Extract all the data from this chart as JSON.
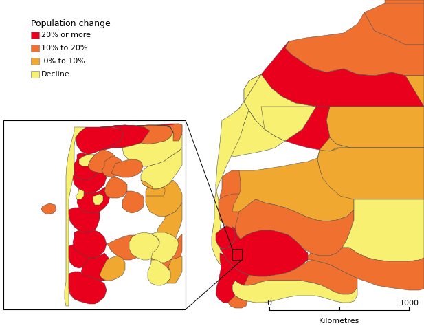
{
  "legend_title": "Population change",
  "legend_items": [
    {
      "label": "20% or more",
      "color": "#e8001c"
    },
    {
      "label": "10% to 20%",
      "color": "#f07030"
    },
    {
      "label": " 0% to 10%",
      "color": "#f0a830"
    },
    {
      "label": "Decline",
      "color": "#f8f070"
    }
  ],
  "scale_bar_label": "Kilometres",
  "scale_bar_0": "0",
  "scale_bar_1000": "1000",
  "bg_color": "#ffffff"
}
